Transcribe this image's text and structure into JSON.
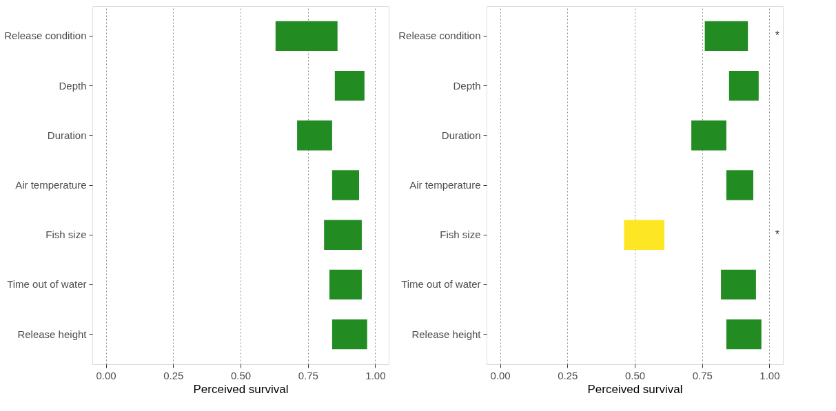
{
  "chart_data": [
    {
      "type": "bar",
      "orientation": "horizontal",
      "xlabel": "Perceived survival",
      "categories": [
        "Release condition",
        "Depth",
        "Duration",
        "Air temperature",
        "Fish size",
        "Time out of water",
        "Release height"
      ],
      "base": [
        0.63,
        0.85,
        0.71,
        0.84,
        0.81,
        0.83,
        0.84
      ],
      "values": [
        0.23,
        0.11,
        0.13,
        0.1,
        0.14,
        0.12,
        0.13
      ],
      "colors": [
        "#228b22",
        "#228b22",
        "#228b22",
        "#228b22",
        "#228b22",
        "#228b22",
        "#228b22"
      ],
      "xlim": [
        -0.05,
        1.05
      ],
      "xticks": [
        {
          "value": 0,
          "label": "0.00"
        },
        {
          "value": 0.25,
          "label": "0.25"
        },
        {
          "value": 0.5,
          "label": "0.50"
        },
        {
          "value": 0.75,
          "label": "0.75"
        },
        {
          "value": 1,
          "label": "1.00"
        }
      ],
      "grid": "x"
    },
    {
      "type": "bar",
      "orientation": "horizontal",
      "xlabel": "Perceived survival",
      "categories": [
        "Release condition",
        "Depth",
        "Duration",
        "Air temperature",
        "Fish size",
        "Time out of water",
        "Release height"
      ],
      "base": [
        0.76,
        0.85,
        0.71,
        0.84,
        0.46,
        0.82,
        0.84
      ],
      "values": [
        0.16,
        0.11,
        0.13,
        0.1,
        0.15,
        0.13,
        0.13
      ],
      "colors": [
        "#228b22",
        "#228b22",
        "#228b22",
        "#228b22",
        "#fde725",
        "#228b22",
        "#228b22"
      ],
      "xlim": [
        -0.05,
        1.05
      ],
      "xticks": [
        {
          "value": 0,
          "label": "0.00"
        },
        {
          "value": 0.25,
          "label": "0.25"
        },
        {
          "value": 0.5,
          "label": "0.50"
        },
        {
          "value": 0.75,
          "label": "0.75"
        },
        {
          "value": 1,
          "label": "1.00"
        }
      ],
      "grid": "x",
      "annotations": [
        "*",
        "*"
      ]
    }
  ]
}
